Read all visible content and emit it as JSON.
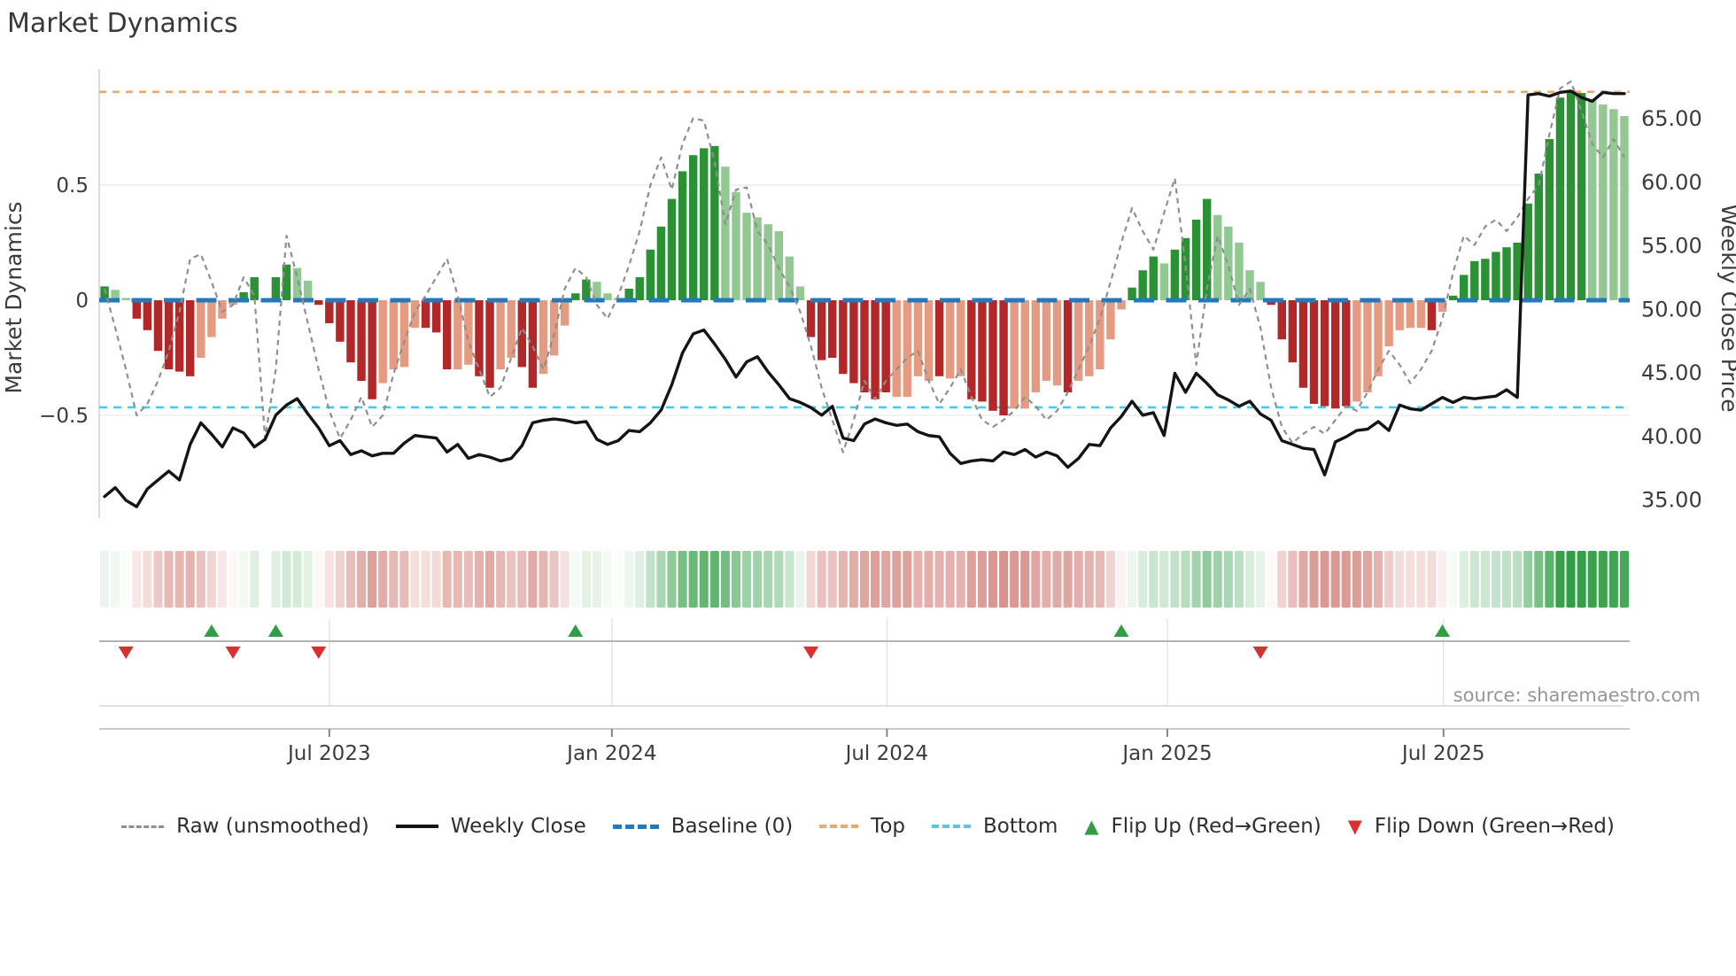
{
  "page": {
    "title": "Market Dynamics"
  },
  "source": {
    "credit": "source: sharemaestro.com"
  },
  "colors": {
    "bar_dark_green": "#2a9235",
    "bar_light_green": "#92c992",
    "bar_dark_red": "#b22828",
    "bar_salmon": "#e59b82",
    "baseline_blue": "#2478bc",
    "top_orange": "#f2a860",
    "bottom_cyan": "#4fc9e8",
    "raw_gray": "#8f8f8f",
    "price_black": "#141414",
    "flip_up_green": "#2f9e44",
    "flip_down_red": "#d93030",
    "strip_green_base": "#2f9e44",
    "strip_red_base": "#bf4a40",
    "grid": "#ececec",
    "spine": "#d4d4d4",
    "marker_line": "#b3b3b3",
    "tick_text": "#3c3c3c"
  },
  "chart_data": {
    "type": "bar",
    "subtype": "oscillator-bars + price line + raw dashed line + heatmap strip + flip markers",
    "title": "Market Dynamics",
    "n_weeks": 143,
    "baseline": 0,
    "top_level": 0.905,
    "bottom_level": -0.465,
    "y_left": {
      "title": "Market Dynamics",
      "ticks": [
        {
          "label": "0.5",
          "v": 0.5
        },
        {
          "label": "0",
          "v": 0
        },
        {
          "label": "−0.5",
          "v": -0.5
        }
      ],
      "range": [
        -0.7,
        1.02
      ]
    },
    "y_right": {
      "title": "Weekly Close Price",
      "ticks": [
        {
          "label": "65.00",
          "v": 65
        },
        {
          "label": "60.00",
          "v": 60
        },
        {
          "label": "55.00",
          "v": 55
        },
        {
          "label": "50.00",
          "v": 50
        },
        {
          "label": "45.00",
          "v": 45
        },
        {
          "label": "40.00",
          "v": 40
        },
        {
          "label": "35.00",
          "v": 35
        }
      ]
    },
    "x_ticks": [
      {
        "label": "Jul 2023",
        "pos": 21.5
      },
      {
        "label": "Jan 2024",
        "pos": 47.9
      },
      {
        "label": "Jul 2024",
        "pos": 73.6
      },
      {
        "label": "Jan 2025",
        "pos": 99.8
      },
      {
        "label": "Jul 2025",
        "pos": 125.6
      }
    ],
    "series": [
      {
        "name": "Oscillator (bars)",
        "kind": "bar",
        "values": [
          0.06,
          0.045,
          0.01,
          -0.08,
          -0.13,
          -0.22,
          -0.3,
          -0.31,
          -0.33,
          -0.25,
          -0.16,
          -0.08,
          -0.02,
          0.035,
          0.1,
          0.005,
          0.1,
          0.155,
          0.14,
          0.085,
          -0.02,
          -0.1,
          -0.18,
          -0.27,
          -0.35,
          -0.43,
          -0.36,
          -0.3,
          -0.29,
          -0.12,
          -0.12,
          -0.14,
          -0.3,
          -0.3,
          -0.28,
          -0.33,
          -0.38,
          -0.3,
          -0.25,
          -0.29,
          -0.38,
          -0.32,
          -0.24,
          -0.11,
          0.03,
          0.09,
          0.08,
          0.03,
          0.01,
          0.05,
          0.1,
          0.22,
          0.32,
          0.44,
          0.56,
          0.63,
          0.66,
          0.67,
          0.58,
          0.47,
          0.38,
          0.36,
          0.33,
          0.3,
          0.19,
          0.06,
          -0.16,
          -0.26,
          -0.25,
          -0.32,
          -0.36,
          -0.4,
          -0.43,
          -0.4,
          -0.42,
          -0.42,
          -0.33,
          -0.35,
          -0.33,
          -0.34,
          -0.33,
          -0.43,
          -0.44,
          -0.48,
          -0.5,
          -0.47,
          -0.47,
          -0.4,
          -0.35,
          -0.37,
          -0.4,
          -0.35,
          -0.33,
          -0.3,
          -0.17,
          -0.04,
          0.055,
          0.13,
          0.19,
          0.16,
          0.22,
          0.27,
          0.35,
          0.44,
          0.37,
          0.32,
          0.25,
          0.13,
          0.08,
          -0.02,
          -0.17,
          -0.27,
          -0.38,
          -0.45,
          -0.46,
          -0.47,
          -0.46,
          -0.44,
          -0.4,
          -0.33,
          -0.2,
          -0.13,
          -0.12,
          -0.12,
          -0.13,
          -0.05,
          0.02,
          0.11,
          0.17,
          0.18,
          0.21,
          0.23,
          0.25,
          0.42,
          0.55,
          0.7,
          0.88,
          0.91,
          0.9,
          0.87,
          0.85,
          0.83,
          0.8
        ],
        "classes": [
          "dg",
          "lg",
          "lg",
          "dr",
          "dr",
          "dr",
          "dr",
          "dr",
          "dr",
          "sr",
          "sr",
          "sr",
          "sr",
          "dg",
          "dg",
          "lg",
          "dg",
          "dg",
          "lg",
          "lg",
          "dr",
          "dr",
          "dr",
          "dr",
          "dr",
          "dr",
          "sr",
          "sr",
          "sr",
          "sr",
          "dr",
          "dr",
          "dr",
          "sr",
          "sr",
          "dr",
          "dr",
          "sr",
          "sr",
          "dr",
          "dr",
          "sr",
          "sr",
          "sr",
          "dg",
          "dg",
          "lg",
          "lg",
          "lg",
          "dg",
          "dg",
          "dg",
          "dg",
          "dg",
          "dg",
          "dg",
          "dg",
          "dg",
          "lg",
          "lg",
          "lg",
          "lg",
          "lg",
          "lg",
          "lg",
          "lg",
          "dr",
          "dr",
          "dr",
          "dr",
          "dr",
          "dr",
          "dr",
          "dr",
          "sr",
          "sr",
          "sr",
          "sr",
          "dr",
          "sr",
          "sr",
          "dr",
          "dr",
          "dr",
          "dr",
          "sr",
          "sr",
          "sr",
          "sr",
          "sr",
          "dr",
          "sr",
          "sr",
          "sr",
          "sr",
          "sr",
          "dg",
          "dg",
          "dg",
          "lg",
          "dg",
          "dg",
          "dg",
          "dg",
          "lg",
          "lg",
          "lg",
          "lg",
          "lg",
          "dr",
          "dr",
          "dr",
          "dr",
          "dr",
          "dr",
          "dr",
          "dr",
          "sr",
          "sr",
          "sr",
          "sr",
          "sr",
          "sr",
          "sr",
          "dr",
          "sr",
          "dg",
          "dg",
          "dg",
          "dg",
          "dg",
          "dg",
          "dg",
          "dg",
          "dg",
          "dg",
          "dg",
          "dg",
          "dg",
          "lg",
          "lg",
          "lg",
          "lg"
        ]
      },
      {
        "name": "Raw (unsmoothed)",
        "kind": "dashed-line",
        "values": [
          0.05,
          -0.12,
          -0.3,
          -0.5,
          -0.45,
          -0.35,
          -0.22,
          -0.05,
          0.18,
          0.2,
          0.08,
          -0.05,
          -0.02,
          0.1,
          0.02,
          -0.6,
          -0.3,
          0.28,
          0.1,
          -0.1,
          -0.3,
          -0.48,
          -0.6,
          -0.52,
          -0.42,
          -0.55,
          -0.5,
          -0.32,
          -0.18,
          -0.05,
          0.02,
          0.1,
          0.18,
          0.02,
          -0.18,
          -0.3,
          -0.42,
          -0.38,
          -0.25,
          -0.12,
          -0.2,
          -0.3,
          -0.15,
          0.05,
          0.14,
          0.1,
          -0.02,
          -0.08,
          0.02,
          0.15,
          0.3,
          0.5,
          0.62,
          0.48,
          0.68,
          0.79,
          0.78,
          0.6,
          0.33,
          0.48,
          0.49,
          0.3,
          0.24,
          0.14,
          0.06,
          -0.05,
          -0.2,
          -0.38,
          -0.52,
          -0.66,
          -0.52,
          -0.35,
          -0.43,
          -0.35,
          -0.3,
          -0.25,
          -0.22,
          -0.35,
          -0.45,
          -0.38,
          -0.3,
          -0.42,
          -0.52,
          -0.55,
          -0.52,
          -0.48,
          -0.42,
          -0.46,
          -0.52,
          -0.48,
          -0.4,
          -0.3,
          -0.2,
          -0.08,
          0.08,
          0.25,
          0.4,
          0.3,
          0.22,
          0.38,
          0.53,
          0.15,
          -0.28,
          0.05,
          0.28,
          0.15,
          -0.02,
          0.05,
          -0.12,
          -0.38,
          -0.55,
          -0.62,
          -0.58,
          -0.55,
          -0.58,
          -0.52,
          -0.46,
          -0.48,
          -0.4,
          -0.3,
          -0.22,
          -0.28,
          -0.36,
          -0.3,
          -0.22,
          -0.08,
          0.12,
          0.28,
          0.24,
          0.32,
          0.35,
          0.3,
          0.36,
          0.44,
          0.5,
          0.72,
          0.92,
          0.95,
          0.82,
          0.68,
          0.62,
          0.7,
          0.62
        ]
      },
      {
        "name": "Weekly Close",
        "kind": "line",
        "axis": "right",
        "values": [
          35.2,
          35.9,
          34.9,
          34.4,
          35.8,
          36.5,
          37.2,
          36.5,
          39.3,
          41.0,
          40.1,
          39.1,
          40.6,
          40.2,
          39.1,
          39.7,
          41.6,
          42.4,
          42.9,
          41.7,
          40.6,
          39.2,
          39.6,
          38.5,
          38.8,
          38.4,
          38.6,
          38.6,
          39.4,
          40.0,
          39.9,
          39.8,
          38.7,
          39.3,
          38.2,
          38.5,
          38.3,
          38.0,
          38.2,
          39.2,
          41.0,
          41.2,
          41.3,
          41.2,
          41.0,
          41.1,
          39.7,
          39.3,
          39.6,
          40.4,
          40.3,
          41.0,
          42.0,
          44.0,
          46.5,
          48.0,
          48.3,
          47.2,
          46.0,
          44.6,
          45.8,
          46.2,
          45.0,
          44.0,
          42.9,
          42.6,
          42.2,
          41.6,
          42.3,
          39.8,
          39.6,
          40.9,
          41.3,
          41.0,
          40.8,
          40.9,
          40.3,
          40.0,
          39.9,
          38.6,
          37.8,
          38.0,
          38.1,
          38.0,
          38.7,
          38.5,
          38.9,
          38.3,
          38.7,
          38.4,
          37.5,
          38.2,
          39.3,
          39.2,
          40.6,
          41.5,
          42.7,
          41.6,
          41.8,
          40.0,
          44.9,
          43.4,
          44.9,
          44.1,
          43.2,
          42.8,
          42.3,
          42.7,
          41.7,
          41.2,
          39.6,
          39.3,
          39.0,
          38.9,
          36.9,
          39.5,
          39.9,
          40.4,
          40.5,
          41.1,
          40.4,
          42.4,
          42.1,
          42.0,
          42.5,
          43.0,
          42.6,
          43.0,
          42.9,
          43.0,
          43.1,
          43.6,
          43.0,
          66.8,
          66.9,
          66.7,
          67.0,
          67.1,
          66.6,
          66.3,
          67.0,
          66.9,
          66.9
        ]
      }
    ],
    "flip_up_weeks": [
      10,
      16,
      44,
      95,
      125
    ],
    "flip_down_weeks": [
      2,
      12,
      20,
      66,
      108
    ]
  },
  "legend": {
    "items": [
      {
        "id": "raw",
        "label": "Raw (unsmoothed)",
        "swatch": "raw"
      },
      {
        "id": "weekly-close",
        "label": "Weekly Close",
        "swatch": "close"
      },
      {
        "id": "baseline",
        "label": "Baseline (0)",
        "swatch": "baseline"
      },
      {
        "id": "top",
        "label": "Top",
        "swatch": "top"
      },
      {
        "id": "bottom",
        "label": "Bottom",
        "swatch": "bottom"
      },
      {
        "id": "flip-up",
        "label": "Flip Up (Red→Green)",
        "swatch": "tri-up",
        "glyph": "▲"
      },
      {
        "id": "flip-down",
        "label": "Flip Down (Green→Red)",
        "swatch": "tri-down",
        "glyph": "▼"
      }
    ]
  }
}
